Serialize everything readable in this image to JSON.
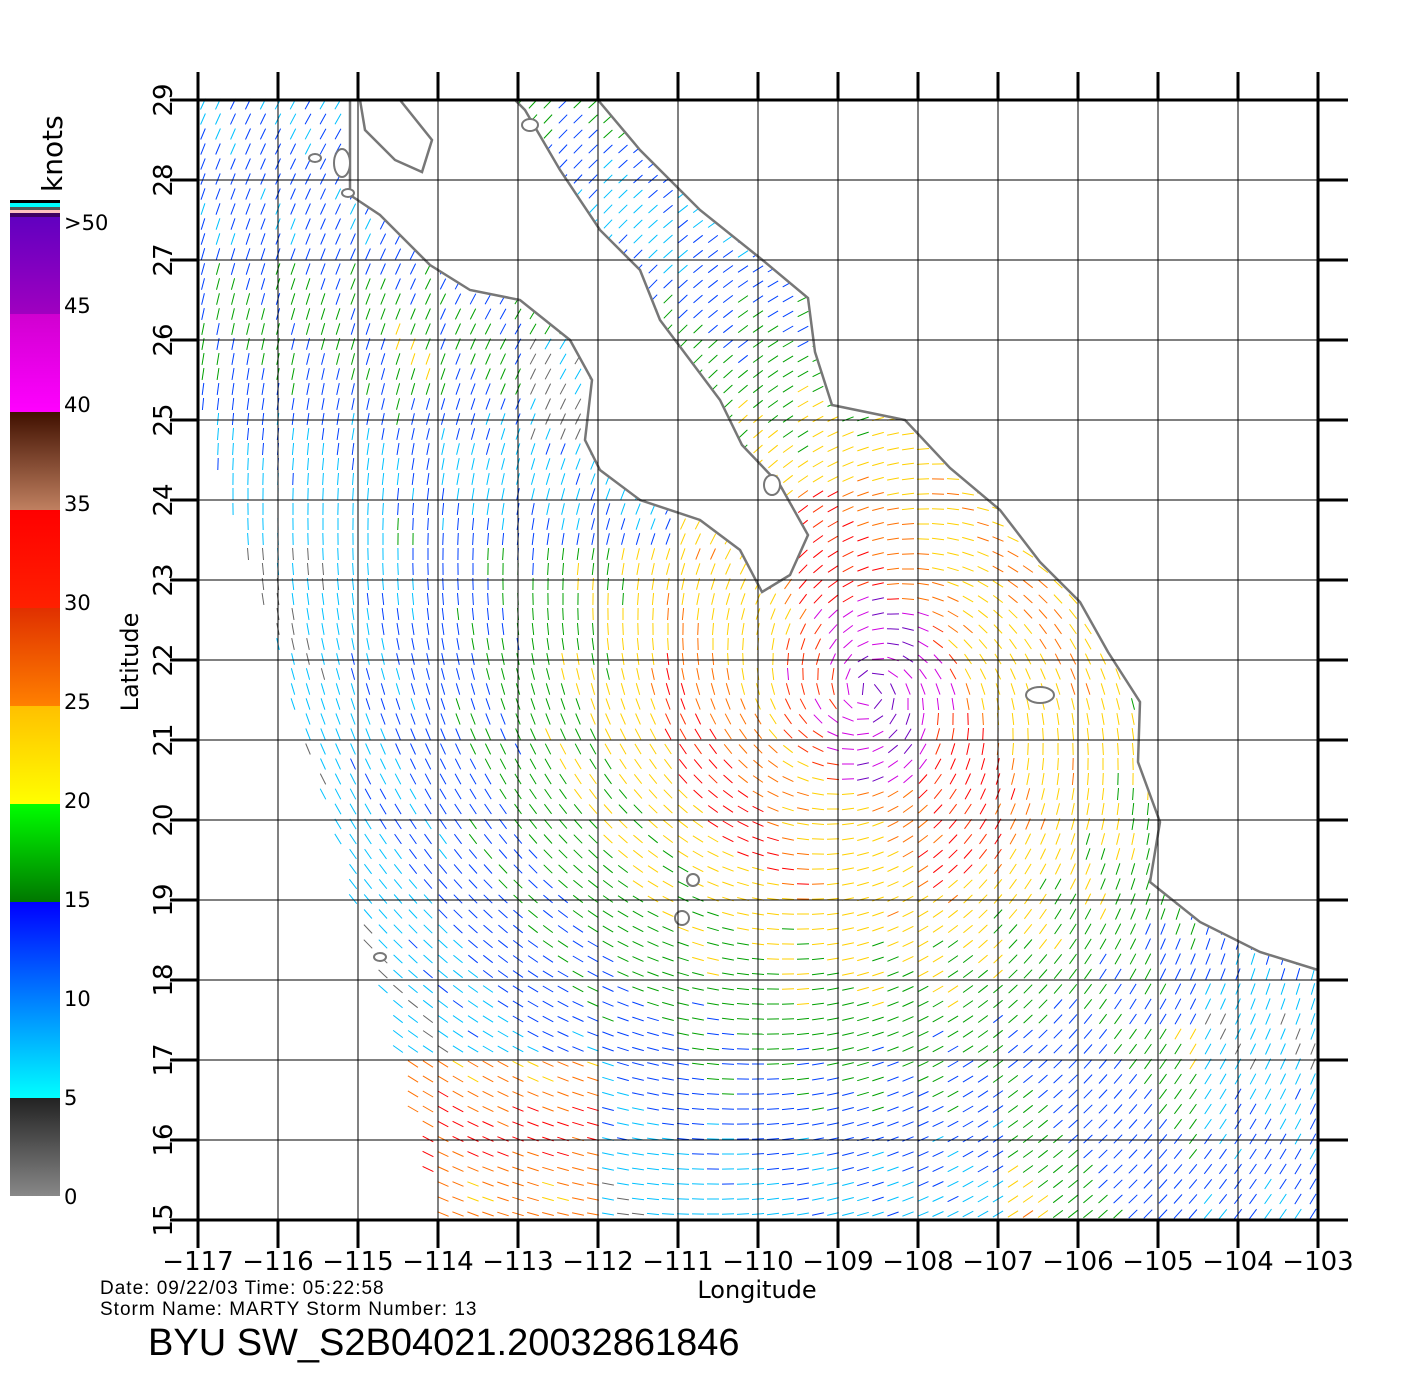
{
  "map": {
    "units_label": "knots",
    "xlabel": "Longitude",
    "ylabel": "Latitude",
    "lon_range": [
      -117,
      -103
    ],
    "lat_range": [
      15,
      29
    ],
    "lon_ticks": [
      "−117",
      "−116",
      "−115",
      "−114",
      "−113",
      "−112",
      "−111",
      "−110",
      "−109",
      "−108",
      "−107",
      "−106",
      "−105",
      "−104",
      "−103"
    ],
    "lat_ticks": [
      "15",
      "16",
      "17",
      "18",
      "19",
      "20",
      "21",
      "22",
      "23",
      "24",
      "25",
      "26",
      "27",
      "28",
      "29"
    ],
    "grid": true
  },
  "colorbar": {
    "labels": [
      "0",
      "5",
      "10",
      "15",
      "20",
      "25",
      "30",
      "35",
      "40",
      "45",
      ">50"
    ],
    "colors": {
      "0-5": [
        "#888888",
        "#222222"
      ],
      "5-10": [
        "#00ffff",
        "#0080ff"
      ],
      "10-15": [
        "#0080ff",
        "#0000ff"
      ],
      "15-20": [
        "#007700",
        "#00ff00"
      ],
      "20-25": [
        "#ffff00",
        "#ffc000"
      ],
      "25-30": [
        "#ff8000",
        "#e03000"
      ],
      "30-35": [
        "#ff2000",
        "#ff0000"
      ],
      "35-40": [
        "#c08060",
        "#401000"
      ],
      "40-45": [
        "#ff00ff",
        "#d000d0"
      ],
      "45-50": [
        "#a000c0",
        "#6000c0"
      ]
    }
  },
  "footer": {
    "date_line": "Date: 09/22/03   Time: 05:22:58",
    "storm_line": "Storm  Name:  MARTY   Storm  Number:  13",
    "title": "BYU  SW_S2B04021.20032861846"
  }
}
